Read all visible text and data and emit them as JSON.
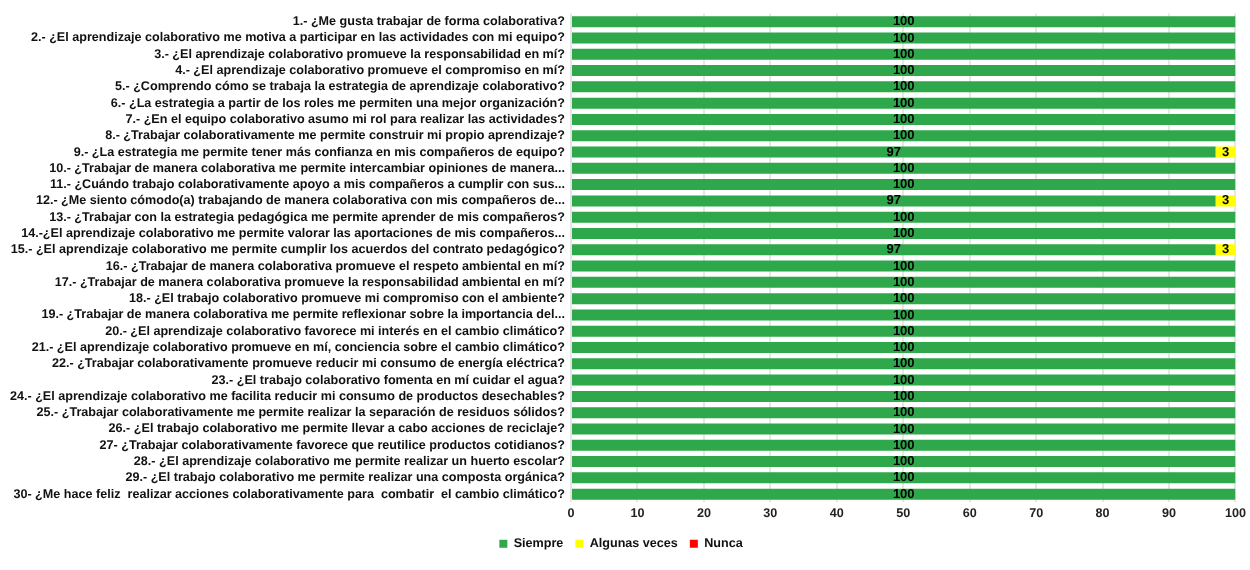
{
  "chart_data": {
    "type": "bar",
    "orientation": "horizontal",
    "stacked": true,
    "categories": [
      "1.- ¿Me gusta trabajar de forma colaborativa?",
      "2.- ¿El aprendizaje colaborativo me motiva a participar en las actividades con mi equipo?",
      "3.- ¿El aprendizaje colaborativo promueve la responsabilidad en mí?",
      "4.- ¿El aprendizaje colaborativo promueve el compromiso en mí?",
      "5.- ¿Comprendo cómo se trabaja la estrategia de aprendizaje colaborativo?",
      "6.- ¿La estrategia a partir de los roles me permiten una mejor organización?",
      "7.- ¿En el equipo colaborativo asumo mi rol para realizar las actividades?",
      "8.- ¿Trabajar colaborativamente me permite construir mi propio aprendizaje?",
      "9.- ¿La estrategia me permite tener más confianza en mis compañeros de equipo?",
      "10.- ¿Trabajar de manera colaborativa me permite intercambiar opiniones de manera...",
      "11.- ¿Cuándo trabajo colaborativamente apoyo a mis compañeros a cumplir con sus...",
      "12.- ¿Me siento cómodo(a) trabajando de manera colaborativa con mis compañeros de...",
      "13.- ¿Trabajar con la estrategia pedagógica me permite aprender de mis compañeros?",
      "14.-¿El aprendizaje colaborativo me permite valorar las aportaciones de mis compañeros...",
      "15.- ¿El aprendizaje colaborativo me permite cumplir los acuerdos del contrato pedagógico?",
      "16.- ¿Trabajar de manera colaborativa promueve el respeto ambiental en mí?",
      "17.- ¿Trabajar de manera colaborativa promueve la responsabilidad ambiental en mí?",
      "18.- ¿El trabajo colaborativo promueve mi compromiso con el ambiente?",
      "19.- ¿Trabajar de manera colaborativa me permite reflexionar sobre la importancia del...",
      "20.- ¿El aprendizaje colaborativo favorece mi interés en el cambio climático?",
      "21.- ¿El aprendizaje colaborativo promueve en mí, conciencia sobre el cambio climático?",
      "22.- ¿Trabajar colaborativamente promueve reducir mi consumo de energía eléctrica?",
      "23.- ¿El trabajo colaborativo fomenta en mí cuidar el agua?",
      "24.- ¿El aprendizaje colaborativo me facilita reducir mi consumo de productos desechables?",
      "25.- ¿Trabajar colaborativamente me permite realizar la separación de residuos sólidos?",
      "26.- ¿El trabajo colaborativo me permite llevar a cabo acciones de reciclaje?",
      "27- ¿Trabajar colaborativamente favorece que reutilice productos cotidianos?",
      "28.- ¿El aprendizaje colaborativo me permite realizar un huerto escolar?",
      "29.- ¿El trabajo colaborativo me permite realizar una composta orgánica?",
      "30- ¿Me hace feliz  realizar acciones colaborativamente para  combatir  el cambio climático?"
    ],
    "series": [
      {
        "name": "Siempre",
        "color": "#2ea84a",
        "values": [
          100,
          100,
          100,
          100,
          100,
          100,
          100,
          100,
          97,
          100,
          100,
          97,
          100,
          100,
          97,
          100,
          100,
          100,
          100,
          100,
          100,
          100,
          100,
          100,
          100,
          100,
          100,
          100,
          100,
          100
        ]
      },
      {
        "name": "Algunas veces",
        "color": "#ffff00",
        "values": [
          null,
          null,
          null,
          null,
          null,
          null,
          null,
          null,
          3,
          null,
          null,
          3,
          null,
          null,
          3,
          null,
          null,
          null,
          null,
          null,
          null,
          null,
          null,
          null,
          null,
          null,
          null,
          null,
          null,
          null
        ]
      },
      {
        "name": "Nunca",
        "color": "#ff0000",
        "values": [
          null,
          null,
          null,
          null,
          null,
          null,
          null,
          null,
          null,
          null,
          null,
          null,
          null,
          null,
          null,
          null,
          null,
          null,
          null,
          null,
          null,
          null,
          null,
          null,
          null,
          null,
          null,
          null,
          null,
          null
        ]
      }
    ],
    "xlim": [
      0,
      100
    ],
    "xticks": [
      0,
      10,
      20,
      30,
      40,
      50,
      60,
      70,
      80,
      90,
      100
    ],
    "grid": "x",
    "legend": "bottom",
    "data_labels": true
  }
}
